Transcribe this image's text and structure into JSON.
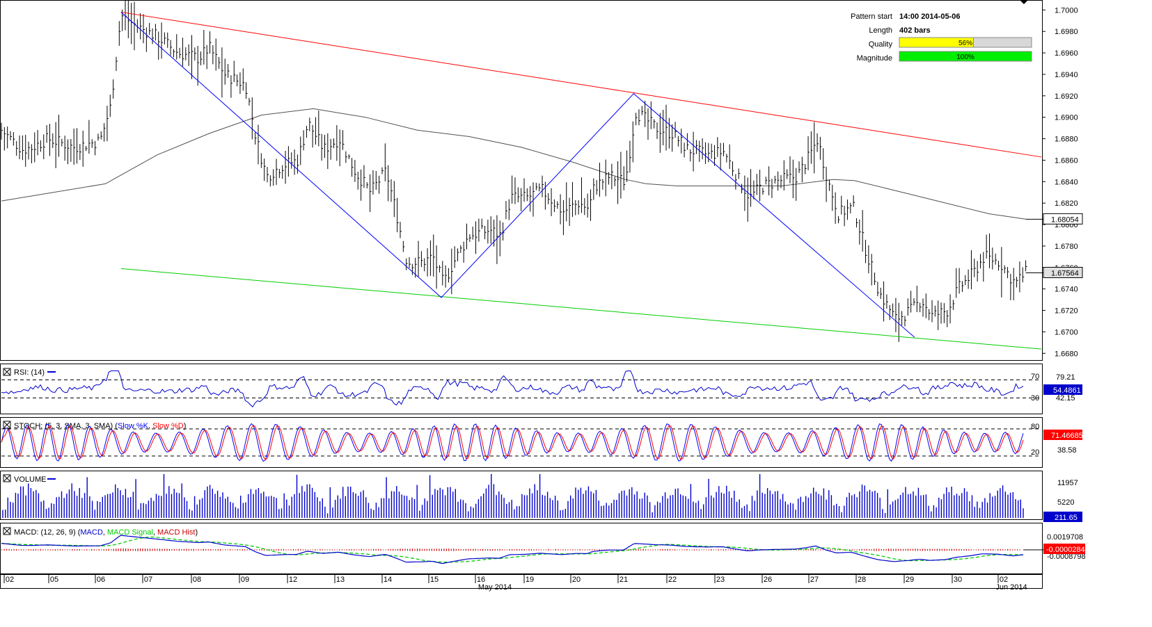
{
  "pattern_info": {
    "pattern_start_label": "Pattern start",
    "pattern_start_value": "14:00 2014-05-06",
    "length_label": "Length",
    "length_value": "402 bars",
    "quality_label": "Quality",
    "quality_value": 56,
    "quality_text": "56%",
    "magnitude_label": "Magnitude",
    "magnitude_value": 100,
    "magnitude_text": "100%"
  },
  "colors": {
    "resistance_line": "#ff0000",
    "support_line": "#00cc00",
    "zigzag": "#0000ff",
    "quality_bar": "#ffff00",
    "magnitude_bar": "#00ee00",
    "price_bars": "#000000",
    "ma_line": "#505050",
    "rsi": "#0000cc",
    "stoch_k": "#0000ff",
    "stoch_d": "#ff0000",
    "volume": "#0000cc",
    "macd": "#0000cc",
    "macd_signal": "#00cc00",
    "macd_hist": "#cc0000"
  },
  "chart_data": {
    "type": "line",
    "ylim": [
      1.6675,
      1.7008
    ],
    "yticks": [
      "1.7000",
      "1.6980",
      "1.6960",
      "1.6940",
      "1.6920",
      "1.6900",
      "1.6880",
      "1.6860",
      "1.6840",
      "1.6820",
      "1.6800",
      "1.6780",
      "1.6760",
      "1.6740",
      "1.6720",
      "1.6700",
      "1.6680"
    ],
    "price_label": "1.67564",
    "ma_label": "1.68054",
    "x_dates": [
      "02",
      "05",
      "06",
      "07",
      "08",
      "09",
      "12",
      "13",
      "14",
      "15",
      "16",
      "19",
      "20",
      "21",
      "22",
      "23",
      "26",
      "27",
      "28",
      "29",
      "30",
      "02"
    ],
    "month_labels": [
      "May 2014",
      "Jun 2014"
    ],
    "zigzag_points": [
      [
        0.115,
        1.6998
      ],
      [
        0.423,
        1.6732
      ],
      [
        0.608,
        1.6922
      ],
      [
        0.878,
        1.6695
      ]
    ],
    "resistance_line": [
      [
        0.115,
        1.6998
      ],
      [
        1.0,
        1.6863
      ]
    ],
    "support_line": [
      [
        0.115,
        1.6759
      ],
      [
        1.0,
        1.6684
      ]
    ],
    "price_path": [
      [
        0.0,
        1.6888
      ],
      [
        0.02,
        1.687
      ],
      [
        0.03,
        1.6872
      ],
      [
        0.045,
        1.688
      ],
      [
        0.07,
        1.6872
      ],
      [
        0.095,
        1.6878
      ],
      [
        0.105,
        1.691
      ],
      [
        0.115,
        1.6995
      ],
      [
        0.13,
        1.6985
      ],
      [
        0.15,
        1.6975
      ],
      [
        0.17,
        1.696
      ],
      [
        0.19,
        1.6955
      ],
      [
        0.2,
        1.6965
      ],
      [
        0.215,
        1.694
      ],
      [
        0.235,
        1.693
      ],
      [
        0.245,
        1.688
      ],
      [
        0.255,
        1.6845
      ],
      [
        0.27,
        1.6855
      ],
      [
        0.285,
        1.686
      ],
      [
        0.295,
        1.6895
      ],
      [
        0.31,
        1.687
      ],
      [
        0.325,
        1.688
      ],
      [
        0.34,
        1.685
      ],
      [
        0.355,
        1.683
      ],
      [
        0.37,
        1.685
      ],
      [
        0.38,
        1.681
      ],
      [
        0.39,
        1.6765
      ],
      [
        0.405,
        1.6765
      ],
      [
        0.415,
        1.677
      ],
      [
        0.425,
        1.6745
      ],
      [
        0.435,
        1.6765
      ],
      [
        0.45,
        1.679
      ],
      [
        0.47,
        1.6795
      ],
      [
        0.48,
        1.679
      ],
      [
        0.49,
        1.6825
      ],
      [
        0.505,
        1.6825
      ],
      [
        0.52,
        1.6832
      ],
      [
        0.54,
        1.6812
      ],
      [
        0.555,
        1.682
      ],
      [
        0.565,
        1.6815
      ],
      [
        0.57,
        1.6835
      ],
      [
        0.585,
        1.6845
      ],
      [
        0.6,
        1.684
      ],
      [
        0.61,
        1.6905
      ],
      [
        0.63,
        1.689
      ],
      [
        0.645,
        1.6885
      ],
      [
        0.66,
        1.687
      ],
      [
        0.68,
        1.6865
      ],
      [
        0.695,
        1.6868
      ],
      [
        0.71,
        1.684
      ],
      [
        0.72,
        1.6825
      ],
      [
        0.73,
        1.6835
      ],
      [
        0.745,
        1.684
      ],
      [
        0.765,
        1.6845
      ],
      [
        0.775,
        1.686
      ],
      [
        0.785,
        1.688
      ],
      [
        0.795,
        1.684
      ],
      [
        0.805,
        1.681
      ],
      [
        0.815,
        1.6815
      ],
      [
        0.82,
        1.6815
      ],
      [
        0.83,
        1.678
      ],
      [
        0.845,
        1.6735
      ],
      [
        0.86,
        1.6712
      ],
      [
        0.875,
        1.672
      ],
      [
        0.885,
        1.673
      ],
      [
        0.895,
        1.6715
      ],
      [
        0.91,
        1.672
      ],
      [
        0.92,
        1.674
      ],
      [
        0.935,
        1.6755
      ],
      [
        0.945,
        1.677
      ],
      [
        0.96,
        1.6765
      ],
      [
        0.975,
        1.6745
      ],
      [
        0.985,
        1.6755
      ]
    ],
    "ma_path": [
      [
        0.0,
        1.6822
      ],
      [
        0.1,
        1.6838
      ],
      [
        0.15,
        1.6865
      ],
      [
        0.2,
        1.6885
      ],
      [
        0.25,
        1.6902
      ],
      [
        0.3,
        1.6908
      ],
      [
        0.35,
        1.69
      ],
      [
        0.4,
        1.6888
      ],
      [
        0.45,
        1.6882
      ],
      [
        0.5,
        1.6872
      ],
      [
        0.55,
        1.6858
      ],
      [
        0.6,
        1.6842
      ],
      [
        0.62,
        1.6838
      ],
      [
        0.65,
        1.6836
      ],
      [
        0.7,
        1.6836
      ],
      [
        0.75,
        1.6836
      ],
      [
        0.8,
        1.6842
      ],
      [
        0.82,
        1.6841
      ],
      [
        0.85,
        1.6834
      ],
      [
        0.9,
        1.6822
      ],
      [
        0.95,
        1.681
      ],
      [
        0.985,
        1.6805
      ]
    ],
    "rsi": {
      "label": "RSI: (14)",
      "value_label": "54.4861",
      "lvl_hi": "70",
      "lvl_lo": "30",
      "tick_a": "79.21",
      "tick_b": "42.15"
    },
    "stoch": {
      "label_prefix": "STOCH: (5, 3, SMA, 3, SMA)",
      "label_k": "Slow %K",
      "label_d": "Slow %D",
      "value_label": "71.46685",
      "lvl_hi": "80",
      "lvl_lo": "20",
      "tick_a": "38.58"
    },
    "volume": {
      "label": "VOLUME",
      "value_label": "211.65",
      "tick_a": "11957",
      "tick_b": "5220"
    },
    "macd": {
      "label_prefix": "MACD: (12, 26, 9)",
      "label_macd": "MACD",
      "label_signal": "MACD Signal",
      "label_hist": "MACD Hist",
      "value_label": "-0.0000284",
      "tick_a": "0.0019708",
      "tick_b": "-0.0008798"
    }
  }
}
